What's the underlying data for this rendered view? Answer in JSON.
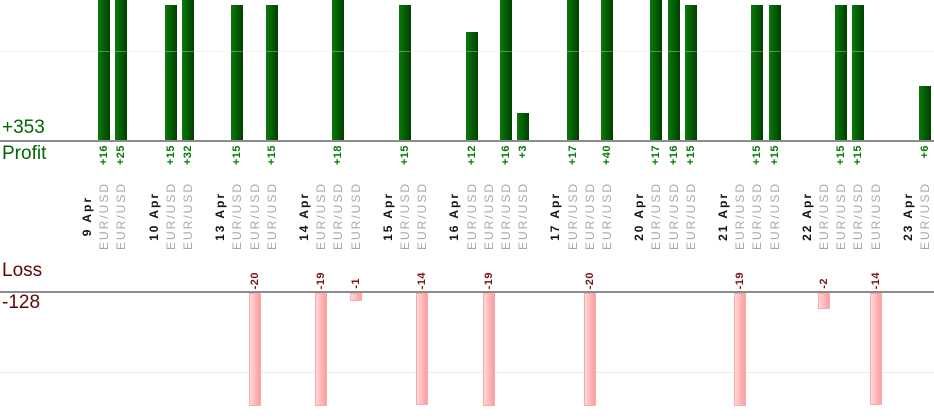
{
  "chart_data": {
    "type": "bar",
    "profit_section": {
      "total_label": "+353",
      "axis_label": "Profit",
      "gridline_value": 10
    },
    "loss_section": {
      "total_label": "-128",
      "axis_label": "Loss",
      "gridline_value": -10
    },
    "groups": [
      {
        "date": "9 Apr",
        "trades": [
          {
            "symbol": "EUR/USD",
            "value": 16
          },
          {
            "symbol": "EUR/USD",
            "value": 25
          }
        ]
      },
      {
        "date": "10 Apr",
        "trades": [
          {
            "symbol": "EUR/USD",
            "value": 15
          },
          {
            "symbol": "EUR/USD",
            "value": 32
          }
        ]
      },
      {
        "date": "13 Apr",
        "trades": [
          {
            "symbol": "EUR/USD",
            "value": 15
          },
          {
            "symbol": "EUR/USD",
            "value": -20
          },
          {
            "symbol": "EUR/USD",
            "value": 15
          }
        ]
      },
      {
        "date": "14 Apr",
        "trades": [
          {
            "symbol": "EUR/USD",
            "value": -19
          },
          {
            "symbol": "EUR/USD",
            "value": 18
          },
          {
            "symbol": "EUR/USD",
            "value": -1
          }
        ]
      },
      {
        "date": "15 Apr",
        "trades": [
          {
            "symbol": "EUR/USD",
            "value": 15
          },
          {
            "symbol": "EUR/USD",
            "value": -14
          }
        ]
      },
      {
        "date": "16 Apr",
        "trades": [
          {
            "symbol": "EUR/USD",
            "value": 12
          },
          {
            "symbol": "EUR/USD",
            "value": -19
          },
          {
            "symbol": "EUR/USD",
            "value": 16
          },
          {
            "symbol": "EUR/USD",
            "value": 3
          }
        ]
      },
      {
        "date": "17 Apr",
        "trades": [
          {
            "symbol": "EUR/USD",
            "value": 17
          },
          {
            "symbol": "EUR/USD",
            "value": -20
          },
          {
            "symbol": "EUR/USD",
            "value": 40
          }
        ]
      },
      {
        "date": "20 Apr",
        "trades": [
          {
            "symbol": "EUR/USD",
            "value": 17
          },
          {
            "symbol": "EUR/USD",
            "value": 16
          },
          {
            "symbol": "EUR/USD",
            "value": 15
          }
        ]
      },
      {
        "date": "21 Apr",
        "trades": [
          {
            "symbol": "EUR/USD",
            "value": -19
          },
          {
            "symbol": "EUR/USD",
            "value": 15
          },
          {
            "symbol": "EUR/USD",
            "value": 15
          }
        ]
      },
      {
        "date": "22 Apr",
        "trades": [
          {
            "symbol": "EUR/USD",
            "value": -2
          },
          {
            "symbol": "EUR/USD",
            "value": 15
          },
          {
            "symbol": "EUR/USD",
            "value": 15
          },
          {
            "symbol": "EUR/USD",
            "value": -14
          }
        ]
      },
      {
        "date": "23 Apr",
        "trades": [
          {
            "symbol": "EUR/USD",
            "value": 6
          }
        ]
      }
    ]
  },
  "colors": {
    "profit_title": "#006600",
    "profit_text": "#067806",
    "loss_title": "#5c0707",
    "loss_text": "#7a1515",
    "axis_line": "#8c8c8c",
    "gridline": "#ededed",
    "date_text": "#141414",
    "symbol_text": "#a8a8a8",
    "profit_bar_gradient": [
      "#0a7a0a",
      "#056005",
      "#013e01"
    ],
    "loss_bar_gradient": [
      "#ffd8d8",
      "#ff9c9c"
    ],
    "loss_bar_border": "#f7abab"
  }
}
